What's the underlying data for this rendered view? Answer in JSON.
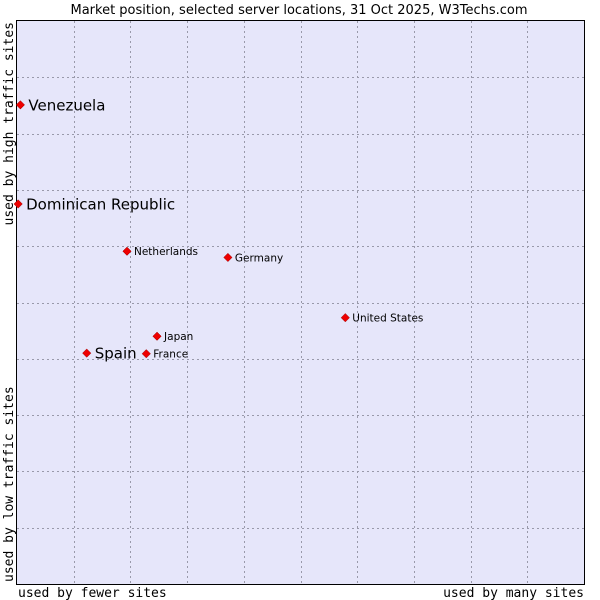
{
  "chart_data": {
    "type": "scatter",
    "title": "Market position, selected server locations, 31 Oct 2025, W3Techs.com",
    "xlabel_left": "used by fewer sites",
    "xlabel_right": "used by many sites",
    "ylabel_bottom": "used by low traffic sites",
    "ylabel_top": "used by high traffic sites",
    "xlim": [
      0,
      100
    ],
    "ylim": [
      0,
      100
    ],
    "grid": true,
    "points": [
      {
        "name": "Venezuela",
        "x": 0.6,
        "y": 85.1,
        "emphasis": true
      },
      {
        "name": "Dominican Republic",
        "x": 0.2,
        "y": 67.5,
        "emphasis": true
      },
      {
        "name": "Netherlands",
        "x": 19.4,
        "y": 59.1,
        "emphasis": false
      },
      {
        "name": "Germany",
        "x": 37.2,
        "y": 58.0,
        "emphasis": false
      },
      {
        "name": "United States",
        "x": 57.9,
        "y": 47.3,
        "emphasis": false
      },
      {
        "name": "Japan",
        "x": 24.7,
        "y": 44.0,
        "emphasis": false
      },
      {
        "name": "Spain",
        "x": 12.3,
        "y": 41.0,
        "emphasis": true
      },
      {
        "name": "France",
        "x": 22.8,
        "y": 40.9,
        "emphasis": false
      }
    ]
  },
  "colors": {
    "plot_background": "#e6e6fa",
    "marker": "#ee0000"
  }
}
